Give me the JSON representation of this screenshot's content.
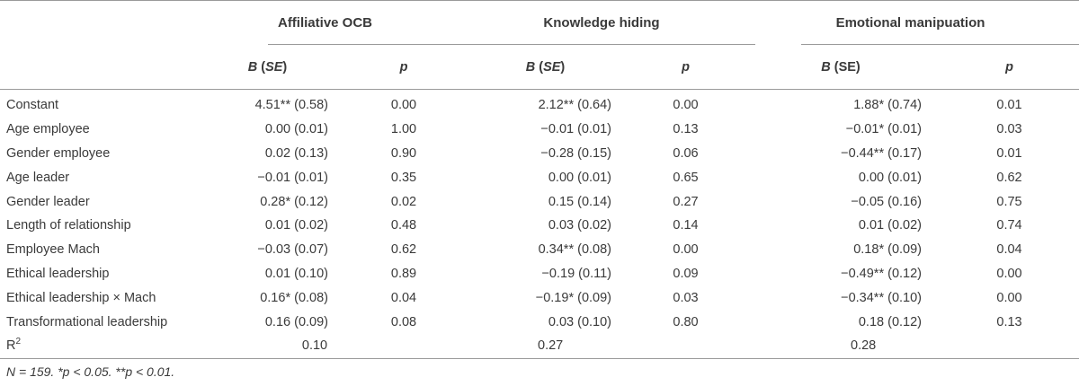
{
  "groups": {
    "ocb": "Affiliative OCB",
    "kh": "Knowledge hiding",
    "em": "Emotional manipuation"
  },
  "subheaders": {
    "b_letter": "B",
    "se_italic": "SE",
    "se_plain": "(SE)",
    "p": "p"
  },
  "rows": [
    {
      "label": "Constant",
      "ocb_b": "4.51** (0.58)",
      "ocb_p": "0.00",
      "kh_b": "2.12** (0.64)",
      "kh_p": "0.00",
      "em_b": "1.88* (0.74)",
      "em_p": "0.01"
    },
    {
      "label": "Age employee",
      "ocb_b": "0.00 (0.01)",
      "ocb_p": "1.00",
      "kh_b": "−0.01 (0.01)",
      "kh_p": "0.13",
      "em_b": "−0.01* (0.01)",
      "em_p": "0.03"
    },
    {
      "label": "Gender employee",
      "ocb_b": "0.02 (0.13)",
      "ocb_p": "0.90",
      "kh_b": "−0.28 (0.15)",
      "kh_p": "0.06",
      "em_b": "−0.44** (0.17)",
      "em_p": "0.01"
    },
    {
      "label": "Age leader",
      "ocb_b": "−0.01 (0.01)",
      "ocb_p": "0.35",
      "kh_b": "0.00 (0.01)",
      "kh_p": "0.65",
      "em_b": "0.00 (0.01)",
      "em_p": "0.62"
    },
    {
      "label": "Gender leader",
      "ocb_b": "0.28* (0.12)",
      "ocb_p": "0.02",
      "kh_b": "0.15 (0.14)",
      "kh_p": "0.27",
      "em_b": "−0.05 (0.16)",
      "em_p": "0.75"
    },
    {
      "label": "Length of relationship",
      "ocb_b": "0.01 (0.02)",
      "ocb_p": "0.48",
      "kh_b": "0.03 (0.02)",
      "kh_p": "0.14",
      "em_b": "0.01 (0.02)",
      "em_p": "0.74"
    },
    {
      "label": "Employee Mach",
      "ocb_b": "−0.03 (0.07)",
      "ocb_p": "0.62",
      "kh_b": "0.34** (0.08)",
      "kh_p": "0.00",
      "em_b": "0.18* (0.09)",
      "em_p": "0.04"
    },
    {
      "label": "Ethical leadership",
      "ocb_b": "0.01 (0.10)",
      "ocb_p": "0.89",
      "kh_b": "−0.19 (0.11)",
      "kh_p": "0.09",
      "em_b": "−0.49** (0.12)",
      "em_p": "0.00"
    },
    {
      "label": "Ethical leadership × Mach",
      "ocb_b": "0.16* (0.08)",
      "ocb_p": "0.04",
      "kh_b": "−0.19* (0.09)",
      "kh_p": "0.03",
      "em_b": "−0.34** (0.10)",
      "em_p": "0.00"
    },
    {
      "label": "Transformational leadership",
      "ocb_b": "0.16 (0.09)",
      "ocb_p": "0.08",
      "kh_b": "0.03 (0.10)",
      "kh_p": "0.80",
      "em_b": "0.18 (0.12)",
      "em_p": "0.13"
    }
  ],
  "r2": {
    "label": "R",
    "sup": "2",
    "ocb": "0.10",
    "kh": "0.27",
    "em": "0.28"
  },
  "note": "N = 159. *p < 0.05. **p < 0.01."
}
